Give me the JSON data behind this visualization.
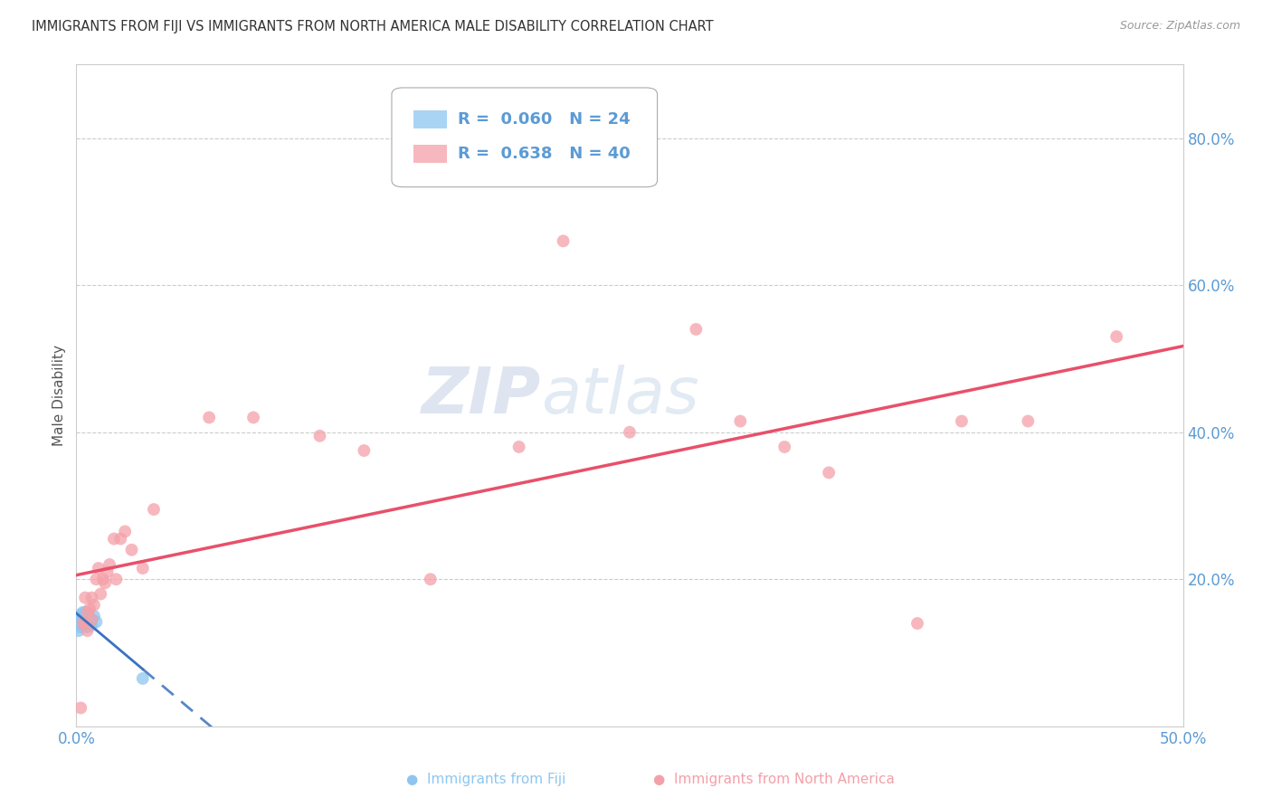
{
  "title": "IMMIGRANTS FROM FIJI VS IMMIGRANTS FROM NORTH AMERICA MALE DISABILITY CORRELATION CHART",
  "source": "Source: ZipAtlas.com",
  "ylabel": "Male Disability",
  "xlim": [
    0.0,
    0.5
  ],
  "ylim": [
    0.0,
    0.9
  ],
  "xtick_labels": [
    "0.0%",
    "",
    "",
    "",
    "",
    "50.0%"
  ],
  "xtick_values": [
    0.0,
    0.1,
    0.2,
    0.3,
    0.4,
    0.5
  ],
  "ytick_labels_right": [
    "20.0%",
    "40.0%",
    "60.0%",
    "80.0%"
  ],
  "ytick_values_right": [
    0.2,
    0.4,
    0.6,
    0.8
  ],
  "fiji_R": "0.060",
  "fiji_N": "24",
  "na_R": "0.638",
  "na_N": "40",
  "fiji_color": "#8EC6F0",
  "na_color": "#F4A0A8",
  "fiji_line_color": "#3A72C0",
  "na_line_color": "#E8506A",
  "background_color": "#FFFFFF",
  "fiji_x": [
    0.001,
    0.001,
    0.001,
    0.002,
    0.002,
    0.002,
    0.002,
    0.003,
    0.003,
    0.003,
    0.003,
    0.004,
    0.004,
    0.004,
    0.005,
    0.005,
    0.005,
    0.006,
    0.006,
    0.007,
    0.007,
    0.008,
    0.009,
    0.03
  ],
  "fiji_y": [
    0.13,
    0.14,
    0.145,
    0.135,
    0.14,
    0.148,
    0.152,
    0.138,
    0.145,
    0.15,
    0.155,
    0.142,
    0.148,
    0.155,
    0.135,
    0.142,
    0.15,
    0.14,
    0.148,
    0.138,
    0.145,
    0.15,
    0.142,
    0.065
  ],
  "na_x": [
    0.002,
    0.003,
    0.004,
    0.004,
    0.005,
    0.005,
    0.006,
    0.007,
    0.007,
    0.008,
    0.009,
    0.01,
    0.011,
    0.012,
    0.013,
    0.014,
    0.015,
    0.017,
    0.018,
    0.02,
    0.022,
    0.025,
    0.03,
    0.035,
    0.06,
    0.08,
    0.11,
    0.13,
    0.16,
    0.2,
    0.22,
    0.25,
    0.28,
    0.3,
    0.32,
    0.34,
    0.38,
    0.4,
    0.43,
    0.47
  ],
  "na_y": [
    0.025,
    0.14,
    0.14,
    0.175,
    0.13,
    0.155,
    0.16,
    0.145,
    0.175,
    0.165,
    0.2,
    0.215,
    0.18,
    0.2,
    0.195,
    0.21,
    0.22,
    0.255,
    0.2,
    0.255,
    0.265,
    0.24,
    0.215,
    0.295,
    0.42,
    0.42,
    0.395,
    0.375,
    0.2,
    0.38,
    0.66,
    0.4,
    0.54,
    0.415,
    0.38,
    0.345,
    0.14,
    0.415,
    0.415,
    0.53
  ]
}
